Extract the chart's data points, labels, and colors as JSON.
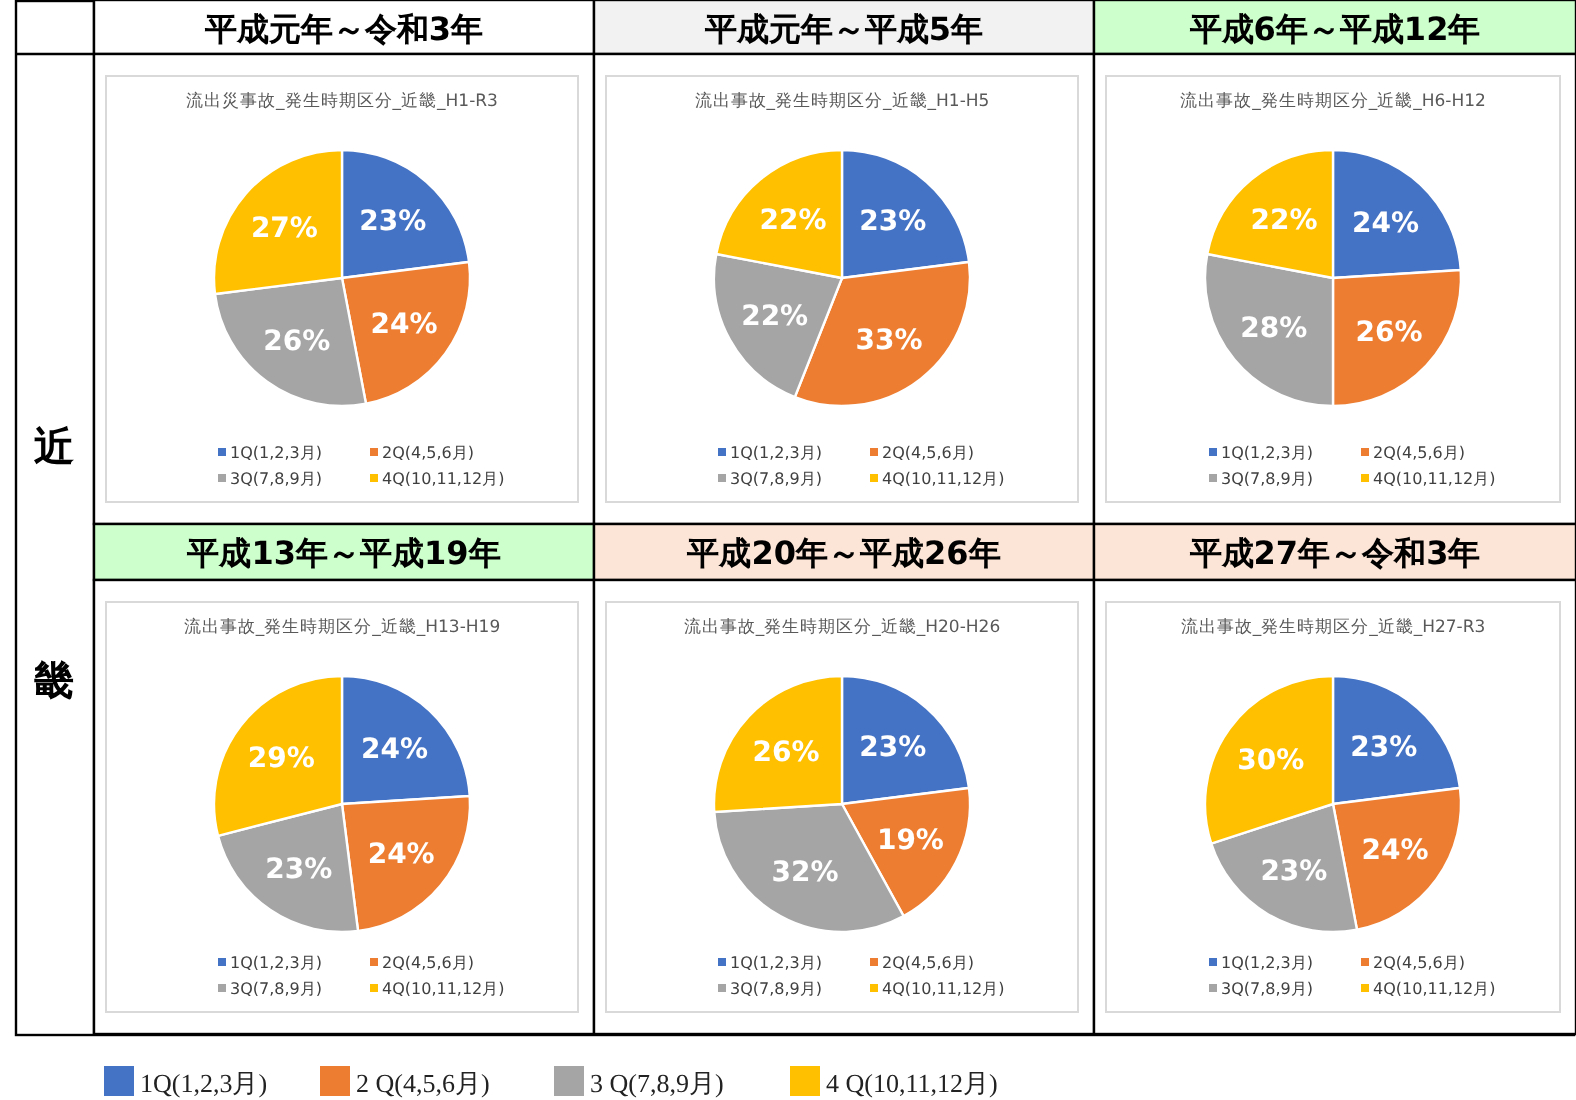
{
  "chart_data": [
    {
      "type": "pie",
      "title": "平成元年～令和3年",
      "subtitle": "流出災事故_発生時期区分_近畿_H1-R3",
      "categories": [
        "1Q(1,2,3月)",
        "2Q(4,5,6月)",
        "3Q(7,8,9月)",
        "4Q(10,11,12月)"
      ],
      "values": [
        23,
        24,
        26,
        27
      ],
      "value_labels": [
        "23%",
        "24%",
        "26%",
        "27%"
      ],
      "colors": [
        "#4472c4",
        "#ed7d31",
        "#a5a5a5",
        "#ffc000"
      ],
      "legend": "bottom",
      "annotations": [
        "近",
        "畿"
      ]
    },
    {
      "type": "pie",
      "title": "平成元年～平成5年",
      "subtitle": "流出事故_発生時期区分_近畿_H1-H5",
      "categories": [
        "1Q(1,2,3月)",
        "2Q(4,5,6月)",
        "3Q(7,8,9月)",
        "4Q(10,11,12月)"
      ],
      "values": [
        23,
        33,
        22,
        22
      ],
      "value_labels": [
        "23%",
        "33%",
        "22%",
        "22%"
      ],
      "colors": [
        "#4472c4",
        "#ed7d31",
        "#a5a5a5",
        "#ffc000"
      ],
      "legend": "bottom"
    },
    {
      "type": "pie",
      "title": "平成6年～平成12年",
      "subtitle": "流出事故_発生時期区分_近畿_H6-H12",
      "categories": [
        "1Q(1,2,3月)",
        "2Q(4,5,6月)",
        "3Q(7,8,9月)",
        "4Q(10,11,12月)"
      ],
      "values": [
        24,
        26,
        28,
        22
      ],
      "value_labels": [
        "24%",
        "26%",
        "28%",
        "22%"
      ],
      "colors": [
        "#4472c4",
        "#ed7d31",
        "#a5a5a5",
        "#ffc000"
      ],
      "legend": "bottom"
    },
    {
      "type": "pie",
      "title": "平成13年～平成19年",
      "subtitle": "流出事故_発生時期区分_近畿_H13-H19",
      "categories": [
        "1Q(1,2,3月)",
        "2Q(4,5,6月)",
        "3Q(7,8,9月)",
        "4Q(10,11,12月)"
      ],
      "values": [
        24,
        24,
        23,
        29
      ],
      "value_labels": [
        "24%",
        "24%",
        "23%",
        "29%"
      ],
      "colors": [
        "#4472c4",
        "#ed7d31",
        "#a5a5a5",
        "#ffc000"
      ],
      "legend": "bottom"
    },
    {
      "type": "pie",
      "title": "平成20年～平成26年",
      "subtitle": "流出事故_発生時期区分_近畿_H20-H26",
      "categories": [
        "1Q(1,2,3月)",
        "2Q(4,5,6月)",
        "3Q(7,8,9月)",
        "4Q(10,11,12月)"
      ],
      "values": [
        23,
        19,
        32,
        26
      ],
      "value_labels": [
        "23%",
        "19%",
        "32%",
        "26%"
      ],
      "colors": [
        "#4472c4",
        "#ed7d31",
        "#a5a5a5",
        "#ffc000"
      ],
      "legend": "bottom"
    },
    {
      "type": "pie",
      "title": "平成27年～令和3年",
      "subtitle": "流出事故_発生時期区分_近畿_H27-R3",
      "categories": [
        "1Q(1,2,3月)",
        "2Q(4,5,6月)",
        "3Q(7,8,9月)",
        "4Q(10,11,12月)"
      ],
      "values": [
        23,
        24,
        23,
        30
      ],
      "value_labels": [
        "23%",
        "24%",
        "23%",
        "30%"
      ],
      "colors": [
        "#4472c4",
        "#ed7d31",
        "#a5a5a5",
        "#ffc000"
      ],
      "legend": "bottom",
      "annotations": [
        "1Q(1,2,3月)",
        "2 Q(4,5,6月)",
        "3 Q(7,8,9月)",
        "4 Q(10,11,12月)"
      ]
    }
  ]
}
